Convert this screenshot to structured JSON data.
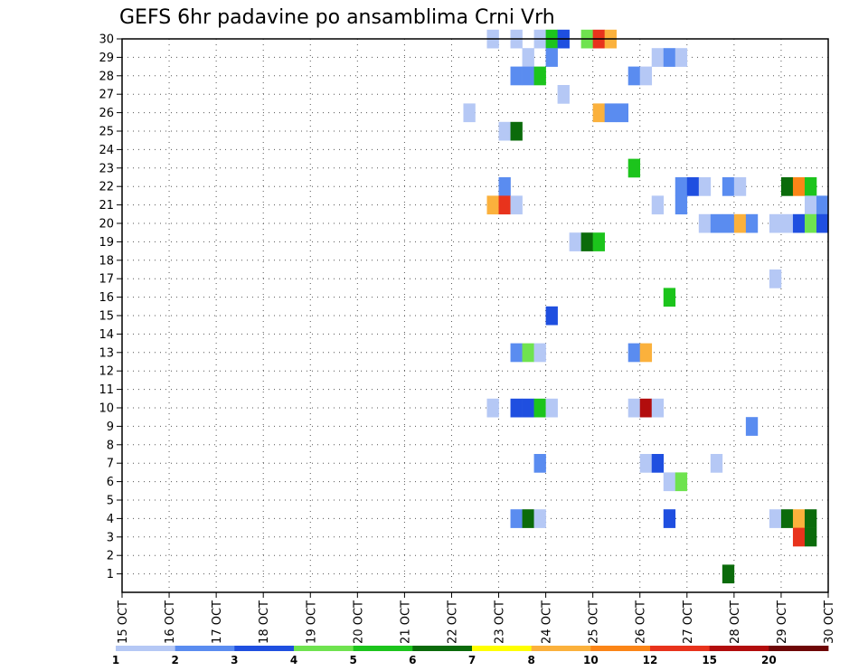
{
  "chart_data": {
    "type": "heatmap",
    "title": "GEFS 6hr padavine po ansamblima Crni Vrh",
    "xlabel": "",
    "ylabel": "",
    "x_ticks": [
      "15 OCT",
      "16 OCT",
      "17 OCT",
      "18 OCT",
      "19 OCT",
      "20 OCT",
      "21 OCT",
      "22 OCT",
      "23 OCT",
      "24 OCT",
      "25 OCT",
      "26 OCT",
      "27 OCT",
      "28 OCT",
      "29 OCT",
      "30 OCT"
    ],
    "y_ticks": [
      "1",
      "2",
      "3",
      "4",
      "5",
      "6",
      "7",
      "8",
      "9",
      "10",
      "11",
      "12",
      "13",
      "14",
      "15",
      "16",
      "17",
      "18",
      "19",
      "20",
      "21",
      "22",
      "23",
      "24",
      "25",
      "26",
      "27",
      "28",
      "29",
      "30"
    ],
    "xlim_days": [
      0,
      15
    ],
    "ylim": [
      0,
      30
    ],
    "grid": true,
    "colorbar": {
      "labels": [
        "1",
        "2",
        "3",
        "4",
        "5",
        "6",
        "7",
        "8",
        "10",
        "12",
        "15",
        "20"
      ],
      "colors": [
        "#b5c8f5",
        "#5a8cf0",
        "#1f4fe0",
        "#6fe34f",
        "#1cc41c",
        "#0b6b0b",
        "#ffff00",
        "#fbb13c",
        "#fb8517",
        "#e8331c",
        "#b20d0d",
        "#6e0707"
      ]
    },
    "cells": [
      {
        "day": 7.75,
        "member": 30,
        "level": 0
      },
      {
        "day": 8.25,
        "member": 30,
        "level": 0
      },
      {
        "day": 8.75,
        "member": 30,
        "level": 0
      },
      {
        "day": 9.0,
        "member": 30,
        "level": 4
      },
      {
        "day": 9.25,
        "member": 30,
        "level": 2
      },
      {
        "day": 9.75,
        "member": 30,
        "level": 3
      },
      {
        "day": 10.0,
        "member": 30,
        "level": 9
      },
      {
        "day": 10.25,
        "member": 30,
        "level": 7
      },
      {
        "day": 8.5,
        "member": 29,
        "level": 0
      },
      {
        "day": 9.0,
        "member": 29,
        "level": 1
      },
      {
        "day": 11.25,
        "member": 29,
        "level": 0
      },
      {
        "day": 11.5,
        "member": 29,
        "level": 1
      },
      {
        "day": 11.75,
        "member": 29,
        "level": 0
      },
      {
        "day": 8.25,
        "member": 28,
        "level": 1
      },
      {
        "day": 8.5,
        "member": 28,
        "level": 1
      },
      {
        "day": 8.75,
        "member": 28,
        "level": 4
      },
      {
        "day": 10.75,
        "member": 28,
        "level": 1
      },
      {
        "day": 11.0,
        "member": 28,
        "level": 0
      },
      {
        "day": 9.25,
        "member": 27,
        "level": 0
      },
      {
        "day": 7.25,
        "member": 26,
        "level": 0
      },
      {
        "day": 10.0,
        "member": 26,
        "level": 7
      },
      {
        "day": 10.25,
        "member": 26,
        "level": 1
      },
      {
        "day": 10.5,
        "member": 26,
        "level": 1
      },
      {
        "day": 8.0,
        "member": 25,
        "level": 0
      },
      {
        "day": 8.25,
        "member": 25,
        "level": 5
      },
      {
        "day": 10.75,
        "member": 23,
        "level": 4
      },
      {
        "day": 8.0,
        "member": 22,
        "level": 1
      },
      {
        "day": 11.75,
        "member": 22,
        "level": 1
      },
      {
        "day": 12.0,
        "member": 22,
        "level": 2
      },
      {
        "day": 12.25,
        "member": 22,
        "level": 0
      },
      {
        "day": 12.75,
        "member": 22,
        "level": 1
      },
      {
        "day": 13.0,
        "member": 22,
        "level": 0
      },
      {
        "day": 14.0,
        "member": 22,
        "level": 5
      },
      {
        "day": 14.25,
        "member": 22,
        "level": 8
      },
      {
        "day": 14.5,
        "member": 22,
        "level": 4
      },
      {
        "day": 7.75,
        "member": 21,
        "level": 7
      },
      {
        "day": 8.0,
        "member": 21,
        "level": 9
      },
      {
        "day": 8.25,
        "member": 21,
        "level": 0
      },
      {
        "day": 11.25,
        "member": 21,
        "level": 0
      },
      {
        "day": 11.75,
        "member": 21,
        "level": 1
      },
      {
        "day": 14.5,
        "member": 21,
        "level": 0
      },
      {
        "day": 14.75,
        "member": 21,
        "level": 1
      },
      {
        "day": 12.25,
        "member": 20,
        "level": 0
      },
      {
        "day": 12.5,
        "member": 20,
        "level": 1
      },
      {
        "day": 12.75,
        "member": 20,
        "level": 1
      },
      {
        "day": 13.0,
        "member": 20,
        "level": 7
      },
      {
        "day": 13.25,
        "member": 20,
        "level": 1
      },
      {
        "day": 13.75,
        "member": 20,
        "level": 0
      },
      {
        "day": 14.0,
        "member": 20,
        "level": 0
      },
      {
        "day": 14.25,
        "member": 20,
        "level": 2
      },
      {
        "day": 14.5,
        "member": 20,
        "level": 3
      },
      {
        "day": 14.75,
        "member": 20,
        "level": 2
      },
      {
        "day": 9.5,
        "member": 19,
        "level": 0
      },
      {
        "day": 9.75,
        "member": 19,
        "level": 5
      },
      {
        "day": 10.0,
        "member": 19,
        "level": 4
      },
      {
        "day": 13.75,
        "member": 17,
        "level": 0
      },
      {
        "day": 11.5,
        "member": 16,
        "level": 4
      },
      {
        "day": 9.0,
        "member": 15,
        "level": 2
      },
      {
        "day": 8.25,
        "member": 13,
        "level": 1
      },
      {
        "day": 8.5,
        "member": 13,
        "level": 3
      },
      {
        "day": 8.75,
        "member": 13,
        "level": 0
      },
      {
        "day": 10.75,
        "member": 13,
        "level": 1
      },
      {
        "day": 11.0,
        "member": 13,
        "level": 7
      },
      {
        "day": 7.75,
        "member": 10,
        "level": 0
      },
      {
        "day": 8.25,
        "member": 10,
        "level": 2
      },
      {
        "day": 8.5,
        "member": 10,
        "level": 2
      },
      {
        "day": 8.75,
        "member": 10,
        "level": 4
      },
      {
        "day": 9.0,
        "member": 10,
        "level": 0
      },
      {
        "day": 10.75,
        "member": 10,
        "level": 0
      },
      {
        "day": 11.0,
        "member": 10,
        "level": 10
      },
      {
        "day": 11.25,
        "member": 10,
        "level": 0
      },
      {
        "day": 13.25,
        "member": 9,
        "level": 1
      },
      {
        "day": 8.75,
        "member": 7,
        "level": 1
      },
      {
        "day": 11.0,
        "member": 7,
        "level": 0
      },
      {
        "day": 11.25,
        "member": 7,
        "level": 2
      },
      {
        "day": 12.5,
        "member": 7,
        "level": 0
      },
      {
        "day": 11.5,
        "member": 6,
        "level": 0
      },
      {
        "day": 11.75,
        "member": 6,
        "level": 3
      },
      {
        "day": 8.25,
        "member": 4,
        "level": 1
      },
      {
        "day": 8.5,
        "member": 4,
        "level": 5
      },
      {
        "day": 8.75,
        "member": 4,
        "level": 0
      },
      {
        "day": 11.5,
        "member": 4,
        "level": 2
      },
      {
        "day": 13.75,
        "member": 4,
        "level": 0
      },
      {
        "day": 14.0,
        "member": 4,
        "level": 5
      },
      {
        "day": 14.25,
        "member": 4,
        "level": 7
      },
      {
        "day": 14.5,
        "member": 4,
        "level": 5
      },
      {
        "day": 14.25,
        "member": 3,
        "level": 9
      },
      {
        "day": 14.5,
        "member": 3,
        "level": 5
      },
      {
        "day": 12.75,
        "member": 1,
        "level": 5
      }
    ]
  }
}
